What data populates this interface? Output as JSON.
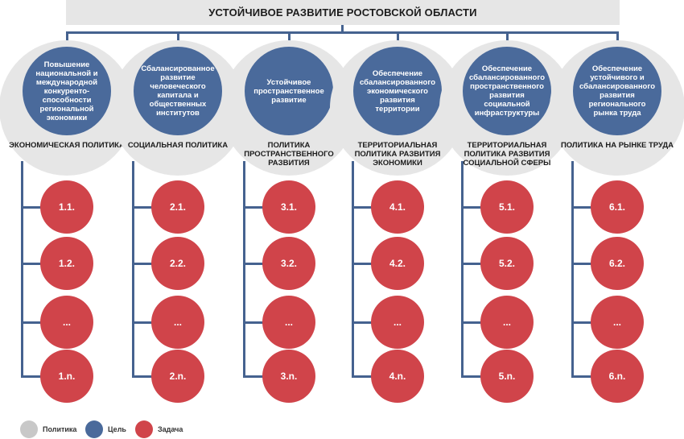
{
  "title": "УСТОЙЧИВОЕ РАЗВИТИЕ РОСТОВСКОЙ ОБЛАСТИ",
  "colors": {
    "policy": "#e6e6e6",
    "goal": "#4a6a9b",
    "task": "#d0444a",
    "connector": "#45628f"
  },
  "columns": [
    {
      "goal": "Повышение национальной и международной конкуренто-способности региональной экономики",
      "policy": "ЭКОНОМИЧЕСКАЯ ПОЛИТИКА",
      "tasks": [
        "1.1.",
        "1.2.",
        "...",
        "1.n."
      ]
    },
    {
      "goal": "Сбалансированное развитие человеческого капитала и общественных институтов",
      "policy": "СОЦИАЛЬНАЯ ПОЛИТИКА",
      "tasks": [
        "2.1.",
        "2.2.",
        "...",
        "2.n."
      ]
    },
    {
      "goal": "Устойчивое пространственное развитие",
      "policy": "ПОЛИТИКА ПРОСТРАНСТВЕННОГО РАЗВИТИЯ",
      "tasks": [
        "3.1.",
        "3.2.",
        "...",
        "3.n."
      ]
    },
    {
      "goal": "Обеспечение сбалансированного экономического развития территории",
      "policy": "ТЕРРИТОРИАЛЬНАЯ ПОЛИТИКА РАЗВИТИЯ ЭКОНОМИКИ",
      "tasks": [
        "4.1.",
        "4.2.",
        "...",
        "4.n."
      ]
    },
    {
      "goal": "Обеспечение сбалансированного пространственного развития социальной инфраструктуры",
      "policy": "ТЕРРИТОРИАЛЬНАЯ ПОЛИТИКА РАЗВИТИЯ СОЦИАЛЬНОЙ СФЕРЫ",
      "tasks": [
        "5.1.",
        "5.2.",
        "...",
        "5.n."
      ]
    },
    {
      "goal": "Обеспечение устойчивого и сбалансированного развития регионального рынка труда",
      "policy": "ПОЛИТИКА НА РЫНКЕ ТРУДА",
      "tasks": [
        "6.1.",
        "6.2.",
        "...",
        "6.n."
      ]
    }
  ],
  "legend": [
    {
      "label": "Политика",
      "color": "#c8c8c8"
    },
    {
      "label": "Цель",
      "color": "#4a6a9b"
    },
    {
      "label": "Задача",
      "color": "#d0444a"
    }
  ]
}
